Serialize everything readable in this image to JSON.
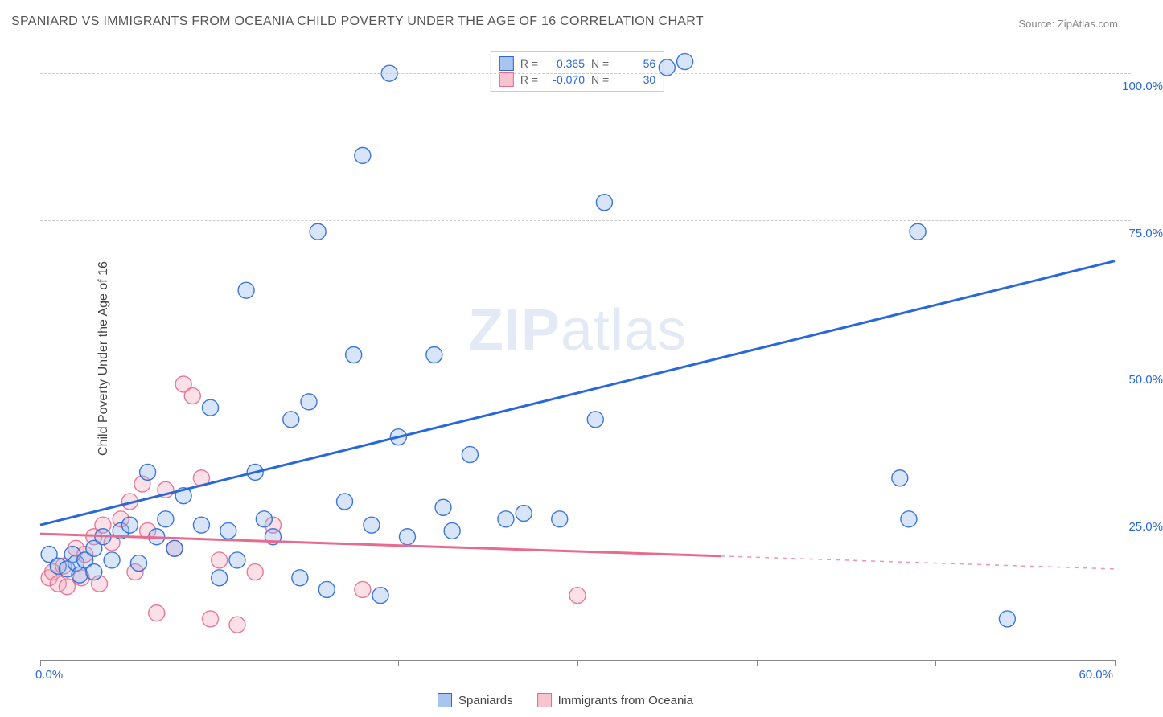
{
  "title": "SPANIARD VS IMMIGRANTS FROM OCEANIA CHILD POVERTY UNDER THE AGE OF 16 CORRELATION CHART",
  "source_prefix": "Source: ",
  "source_name": "ZipAtlas.com",
  "ylabel": "Child Poverty Under the Age of 16",
  "watermark_a": "ZIP",
  "watermark_b": "atlas",
  "chart": {
    "type": "scatter",
    "xlim": [
      0,
      60
    ],
    "ylim": [
      0,
      104
    ],
    "xticks": [
      0,
      10,
      20,
      30,
      40,
      50,
      60
    ],
    "xtick_labels_shown": {
      "0": "0.0%",
      "60": "60.0%"
    },
    "yticks": [
      25,
      50,
      75,
      100
    ],
    "ytick_labels": {
      "25": "25.0%",
      "50": "50.0%",
      "75": "75.0%",
      "100": "100.0%"
    },
    "background_color": "#ffffff",
    "grid_color": "#cccccc",
    "grid_dash": "4,4",
    "axis_color": "#888888",
    "marker_radius": 10,
    "marker_fill_opacity": 0.35,
    "marker_stroke_opacity": 0.9,
    "line_width": 3,
    "series": [
      {
        "key": "spaniards",
        "label": "Spaniards",
        "color_stroke": "#2968d8",
        "color_fill": "#8fb4ec",
        "swatch_fill": "#a9c4ef",
        "swatch_border": "#2968d8",
        "r": "0.365",
        "n": "56",
        "trend": {
          "x1": 0,
          "y1": 23,
          "x2": 60,
          "y2": 68,
          "solid_until_x": 60
        },
        "points": [
          [
            0.5,
            18
          ],
          [
            1,
            16
          ],
          [
            1.5,
            15.5
          ],
          [
            1.8,
            18
          ],
          [
            2,
            16.5
          ],
          [
            2.2,
            14.5
          ],
          [
            2.5,
            17
          ],
          [
            3,
            19
          ],
          [
            3,
            15
          ],
          [
            3.5,
            21
          ],
          [
            4,
            17
          ],
          [
            4.5,
            22
          ],
          [
            5,
            23
          ],
          [
            5.5,
            16.5
          ],
          [
            6,
            32
          ],
          [
            6.5,
            21
          ],
          [
            7,
            24
          ],
          [
            7.5,
            19
          ],
          [
            8,
            28
          ],
          [
            9,
            23
          ],
          [
            9.5,
            43
          ],
          [
            10,
            14
          ],
          [
            10.5,
            22
          ],
          [
            11,
            17
          ],
          [
            11.5,
            63
          ],
          [
            12,
            32
          ],
          [
            12.5,
            24
          ],
          [
            13,
            21
          ],
          [
            14,
            41
          ],
          [
            14.5,
            14
          ],
          [
            15,
            44
          ],
          [
            15.5,
            73
          ],
          [
            16,
            12
          ],
          [
            17,
            27
          ],
          [
            17.5,
            52
          ],
          [
            18,
            86
          ],
          [
            18.5,
            23
          ],
          [
            19,
            11
          ],
          [
            19.5,
            100
          ],
          [
            20,
            38
          ],
          [
            20.5,
            21
          ],
          [
            22,
            52
          ],
          [
            22.5,
            26
          ],
          [
            23,
            22
          ],
          [
            24,
            35
          ],
          [
            26,
            24
          ],
          [
            27,
            25
          ],
          [
            29,
            24
          ],
          [
            31,
            41
          ],
          [
            31.5,
            78
          ],
          [
            35,
            101
          ],
          [
            36,
            102
          ],
          [
            48,
            31
          ],
          [
            48.5,
            24
          ],
          [
            49,
            73
          ],
          [
            54,
            7
          ]
        ]
      },
      {
        "key": "immigrants",
        "label": "Immigrants from Oceania",
        "color_stroke": "#e86a8f",
        "color_fill": "#f4aab9",
        "swatch_fill": "#f6c3cf",
        "swatch_border": "#e86a8f",
        "r": "-0.070",
        "n": "30",
        "trend": {
          "x1": 0,
          "y1": 21.5,
          "x2": 60,
          "y2": 15.5,
          "solid_until_x": 38
        },
        "points": [
          [
            0.5,
            14
          ],
          [
            0.7,
            15
          ],
          [
            1,
            13
          ],
          [
            1.3,
            16
          ],
          [
            1.5,
            12.5
          ],
          [
            2,
            19
          ],
          [
            2.3,
            14
          ],
          [
            2.5,
            18
          ],
          [
            3,
            21
          ],
          [
            3.3,
            13
          ],
          [
            3.5,
            23
          ],
          [
            4,
            20
          ],
          [
            4.5,
            24
          ],
          [
            5,
            27
          ],
          [
            5.3,
            15
          ],
          [
            5.7,
            30
          ],
          [
            6,
            22
          ],
          [
            6.5,
            8
          ],
          [
            7,
            29
          ],
          [
            7.5,
            19
          ],
          [
            8,
            47
          ],
          [
            8.5,
            45
          ],
          [
            9,
            31
          ],
          [
            9.5,
            7
          ],
          [
            10,
            17
          ],
          [
            11,
            6
          ],
          [
            12,
            15
          ],
          [
            13,
            23
          ],
          [
            18,
            12
          ],
          [
            30,
            11
          ]
        ]
      }
    ]
  },
  "legend_stats_label_r": "R =",
  "legend_stats_label_n": "N ="
}
